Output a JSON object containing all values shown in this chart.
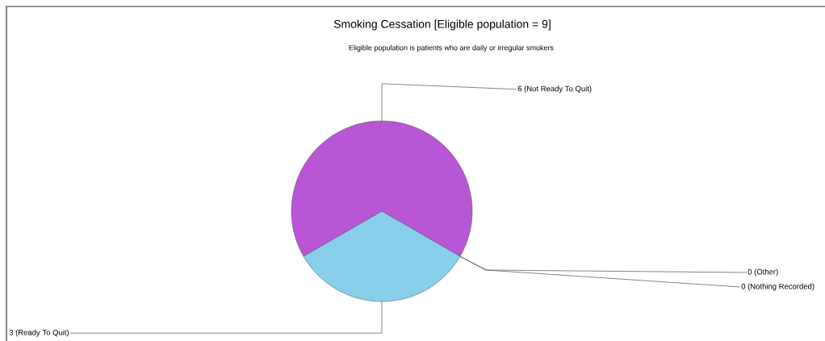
{
  "chart_data": {
    "type": "pie",
    "title": "Smoking Cessation [Eligible population = 9]",
    "subtitle": "Eligible population is patients who are daily or irregular smokers",
    "categories": [
      "6 (Not Ready To Quit)",
      "3 (Ready To Quit)",
      "0 (Other)",
      "0 (Nothing Recorded)"
    ],
    "values": [
      6,
      3,
      0,
      0
    ],
    "colors": [
      "#b956d6",
      "#87ceeb",
      "#b956d6",
      "#87ceeb"
    ]
  }
}
